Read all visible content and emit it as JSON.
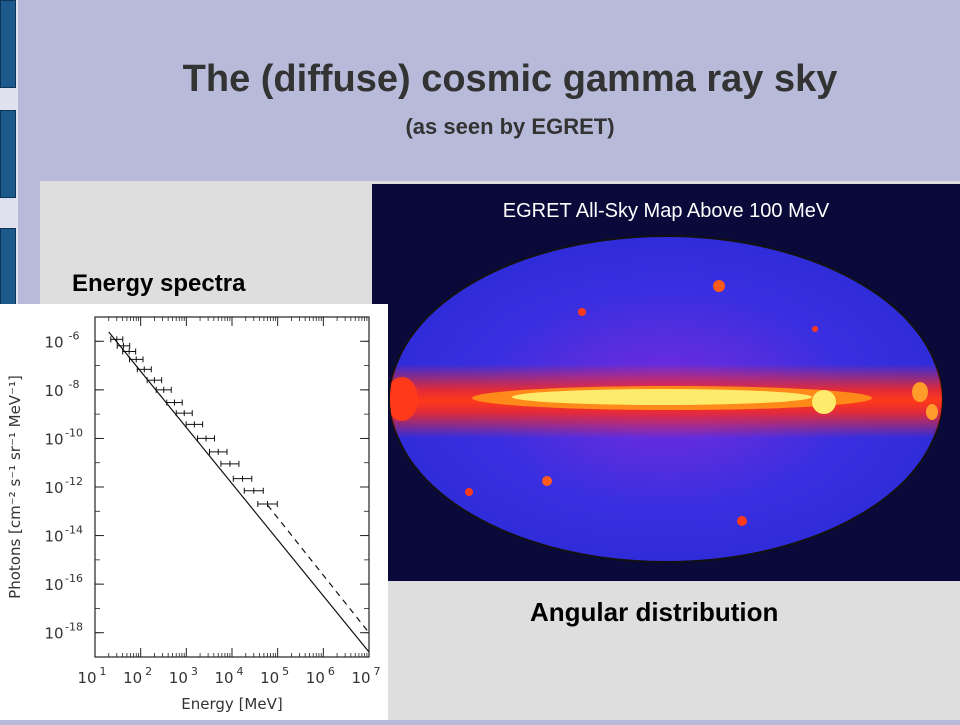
{
  "slide": {
    "title": "The (diffuse) cosmic gamma ray sky",
    "subtitle": "(as seen by EGRET)",
    "energy_label": "Energy spectra",
    "angular_label": "Angular distribution"
  },
  "sky_map": {
    "title": "EGRET All-Sky Map Above 100 MeV"
  },
  "colors": {
    "background": "#b7bbd9",
    "content": "#dedede",
    "tab": "#1d5a8c",
    "sky": "#0a0a3a",
    "galactic_plane": "#ffeb6b"
  },
  "chart_data": {
    "type": "scatter",
    "xlabel": "Energy [MeV]",
    "ylabel": "Photons [cm⁻² s⁻¹ sr⁻¹ MeV⁻¹]",
    "xscale": "log",
    "yscale": "log",
    "xlim": [
      10,
      10000000
    ],
    "ylim": [
      1e-19,
      1e-05
    ],
    "x_ticks": [
      10,
      100,
      1000,
      10000,
      100000,
      1000000,
      10000000
    ],
    "x_tick_exponents": [
      "1",
      "2",
      "3",
      "4",
      "5",
      "6",
      "7"
    ],
    "y_ticks": [
      1e-06,
      1e-08,
      1e-10,
      1e-12,
      1e-14,
      1e-16,
      1e-18
    ],
    "y_tick_exponents": [
      "-6",
      "-8",
      "-10",
      "-12",
      "-14",
      "-16",
      "-18"
    ],
    "series": [
      {
        "style": "points",
        "x": [
          30,
          42,
          56,
          80,
          120,
          200,
          320,
          550,
          900,
          1500,
          2700,
          5000,
          9000,
          17000,
          30000,
          60000
        ],
        "y": [
          1.2e-06,
          6.5e-07,
          3.8e-07,
          1.8e-07,
          7e-08,
          2.5e-08,
          1e-08,
          3e-09,
          1.1e-09,
          3.8e-10,
          1e-10,
          2.8e-11,
          9e-12,
          2.2e-12,
          7e-13,
          2e-13
        ]
      },
      {
        "style": "solid",
        "x": [
          20,
          10000000
        ],
        "y": [
          2.4e-06,
          1.6e-19
        ]
      },
      {
        "style": "dashed",
        "x": [
          60000,
          10000000
        ],
        "y": [
          1.8e-13,
          1e-18
        ]
      }
    ]
  }
}
